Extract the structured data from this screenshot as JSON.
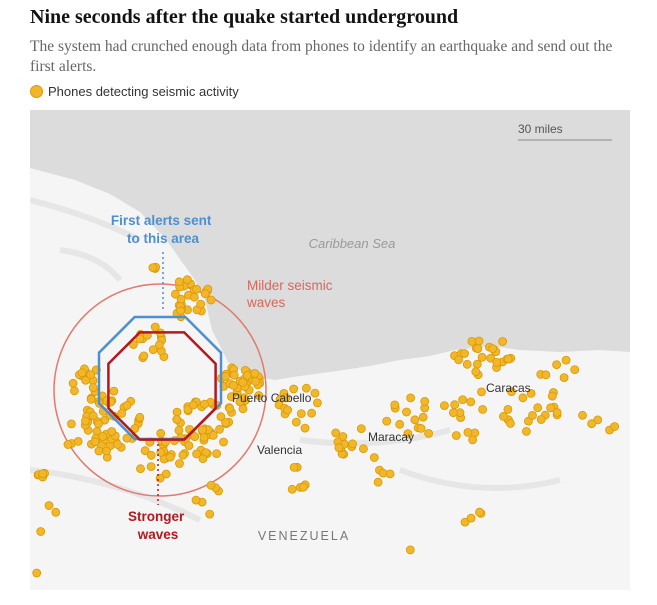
{
  "header": {
    "title": "Nine seconds after the quake started underground",
    "subtitle": "The system had crunched enough data from phones to identify an earthquake and send out the first alerts."
  },
  "legend": {
    "label": "Phones detecting seismic activity"
  },
  "map": {
    "scale_label": "30 miles",
    "sea_label": "Caribbean Sea",
    "places": [
      "Puerto Cabello",
      "Valencia",
      "Maracay",
      "Caracas"
    ],
    "country": "VENEZUELA",
    "annotations": {
      "first_alerts": [
        "First alerts sent",
        "to this area"
      ],
      "milder": [
        "Milder seismic",
        "waves"
      ],
      "stronger": [
        "Stronger",
        "waves"
      ]
    }
  }
}
